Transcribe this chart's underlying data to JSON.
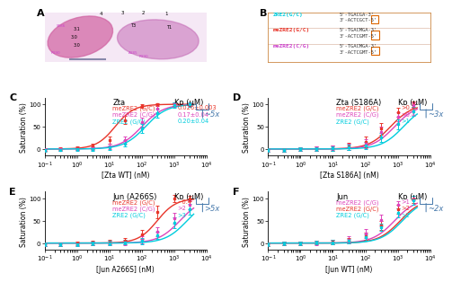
{
  "panel_C": {
    "title": "Zta",
    "xlabel": "[Zta WT] (nM)",
    "ylabel": "Saturation (%)",
    "xlim_log": [
      -1,
      4
    ],
    "ylim": [
      -15,
      115
    ],
    "series": [
      {
        "label": "meZRE2 (G/C)",
        "color": "#e8352a",
        "kd": "0.026±0.003",
        "hill": 1.5,
        "ec50": 15,
        "xdata": [
          0.1,
          0.3,
          1,
          3,
          10,
          30,
          100,
          300,
          1000,
          3000
        ],
        "ydata": [
          -2,
          0,
          2,
          5,
          20,
          65,
          97,
          100,
          100,
          100
        ],
        "yerr": [
          3,
          3,
          4,
          6,
          8,
          10,
          4,
          3,
          3,
          3
        ]
      },
      {
        "label": "meZRE2 (C/G)",
        "color": "#dd44bb",
        "kd": "0.17±0.04",
        "hill": 1.3,
        "ec50": 100,
        "xdata": [
          0.1,
          0.3,
          1,
          3,
          10,
          30,
          100,
          300,
          1000,
          3000
        ],
        "ydata": [
          -2,
          -1,
          0,
          2,
          5,
          20,
          60,
          90,
          100,
          100
        ],
        "yerr": [
          3,
          3,
          3,
          4,
          6,
          8,
          10,
          8,
          5,
          4
        ]
      },
      {
        "label": "ZRE2 (G/C)",
        "color": "#00ccdd",
        "kd": "0.20±0.04",
        "hill": 1.3,
        "ec50": 130,
        "xdata": [
          0.1,
          0.3,
          1,
          3,
          10,
          30,
          100,
          300,
          1000,
          3000
        ],
        "ydata": [
          -3,
          -2,
          -1,
          0,
          3,
          12,
          45,
          80,
          98,
          100
        ],
        "yerr": [
          3,
          3,
          3,
          4,
          5,
          7,
          10,
          10,
          6,
          5
        ]
      }
    ],
    "annotation": "~5x",
    "kd_label": "Kᴅ (μM)"
  },
  "panel_D": {
    "title": "Zta (S186A)",
    "xlabel": "[Zta S186A] (nM)",
    "ylabel": "Saturation (%)",
    "xlim_log": [
      -1,
      4
    ],
    "ylim": [
      -15,
      115
    ],
    "series": [
      {
        "label": "meZRE2 (G/C)",
        "color": "#e8352a",
        "kd": ">0.4",
        "hill": 1.3,
        "ec50": 600,
        "xdata": [
          0.1,
          0.3,
          1,
          3,
          10,
          30,
          100,
          300,
          1000,
          3000
        ],
        "ydata": [
          -3,
          -2,
          -1,
          0,
          2,
          5,
          15,
          45,
          82,
          100
        ],
        "yerr": [
          4,
          4,
          4,
          5,
          6,
          8,
          12,
          14,
          10,
          6
        ]
      },
      {
        "label": "meZRE2 (C/G)",
        "color": "#dd44bb",
        "kd": ">0.4",
        "hill": 1.3,
        "ec50": 800,
        "xdata": [
          0.1,
          0.3,
          1,
          3,
          10,
          30,
          100,
          300,
          1000,
          3000
        ],
        "ydata": [
          -3,
          -2,
          -1,
          0,
          2,
          4,
          12,
          38,
          72,
          98
        ],
        "yerr": [
          4,
          4,
          4,
          5,
          5,
          7,
          10,
          12,
          10,
          6
        ]
      },
      {
        "label": "ZRE2 (G/C)",
        "color": "#00ccdd",
        "kd": ">1",
        "hill": 1.3,
        "ec50": 1500,
        "xdata": [
          0.1,
          0.3,
          1,
          3,
          10,
          30,
          100,
          300,
          1000,
          3000
        ],
        "ydata": [
          -3,
          -2,
          -1,
          0,
          1,
          3,
          8,
          25,
          55,
          85
        ],
        "yerr": [
          4,
          4,
          4,
          4,
          5,
          6,
          8,
          10,
          12,
          10
        ]
      }
    ],
    "annotation": "~3x",
    "kd_label": "Kᴅ (μM)"
  },
  "panel_E": {
    "title": "Jun (A266S)",
    "xlabel": "[Jun A266S] (nM)",
    "ylabel": "Saturation (%)",
    "xlim_log": [
      -1,
      4
    ],
    "ylim": [
      -15,
      115
    ],
    "series": [
      {
        "label": "meZRE2 (G/C)",
        "color": "#e8352a",
        "kd": "~0.4",
        "hill": 1.5,
        "ec50": 300,
        "xdata": [
          0.1,
          0.3,
          1,
          3,
          10,
          30,
          100,
          300,
          1000,
          3000
        ],
        "ydata": [
          -3,
          -2,
          -1,
          0,
          2,
          5,
          20,
          70,
          100,
          100
        ],
        "yerr": [
          4,
          4,
          4,
          5,
          5,
          7,
          10,
          14,
          8,
          6
        ]
      },
      {
        "label": "meZRE2 (C/G)",
        "color": "#dd44bb",
        "kd": ">2",
        "hill": 1.3,
        "ec50": 1500,
        "xdata": [
          0.1,
          0.3,
          1,
          3,
          10,
          30,
          100,
          300,
          1000,
          3000
        ],
        "ydata": [
          -3,
          -2,
          -2,
          -1,
          0,
          2,
          8,
          25,
          55,
          85
        ],
        "yerr": [
          4,
          4,
          4,
          4,
          5,
          6,
          8,
          10,
          12,
          10
        ]
      },
      {
        "label": "ZRE2 (G/C)",
        "color": "#00ccdd",
        "kd": ">3",
        "hill": 1.3,
        "ec50": 2500,
        "xdata": [
          0.1,
          0.3,
          1,
          3,
          10,
          30,
          100,
          300,
          1000,
          3000
        ],
        "ydata": [
          -3,
          -2,
          -2,
          -1,
          0,
          2,
          5,
          18,
          45,
          75
        ],
        "yerr": [
          4,
          4,
          4,
          4,
          5,
          5,
          7,
          8,
          12,
          12
        ]
      }
    ],
    "annotation": ">5x",
    "kd_label": "Kᴅ (μM)"
  },
  "panel_F": {
    "title": "Jun",
    "xlabel": "[Jun WT] (nM)",
    "ylabel": "Saturation (%)",
    "xlim_log": [
      -1,
      4
    ],
    "ylim": [
      -15,
      115
    ],
    "series": [
      {
        "label": "meZRE2 (C/G)",
        "color": "#dd44bb",
        "kd": ">1",
        "hill": 1.3,
        "ec50": 800,
        "xdata": [
          0.1,
          0.3,
          1,
          3,
          10,
          30,
          100,
          300,
          1000,
          3000
        ],
        "ydata": [
          -2,
          -1,
          0,
          1,
          3,
          8,
          22,
          52,
          85,
          100
        ],
        "yerr": [
          4,
          4,
          4,
          5,
          5,
          7,
          10,
          12,
          8,
          5
        ]
      },
      {
        "label": "meZRE2 (G/C)",
        "color": "#e8352a",
        "kd": ">2",
        "hill": 1.3,
        "ec50": 1200,
        "xdata": [
          0.1,
          0.3,
          1,
          3,
          10,
          30,
          100,
          300,
          1000,
          3000
        ],
        "ydata": [
          -2,
          -1,
          0,
          1,
          3,
          6,
          15,
          40,
          75,
          98
        ],
        "yerr": [
          4,
          4,
          4,
          4,
          5,
          6,
          8,
          10,
          10,
          8
        ]
      },
      {
        "label": "ZRE2 (G/C)",
        "color": "#00ccdd",
        "kd": ">2",
        "hill": 1.3,
        "ec50": 1400,
        "xdata": [
          0.1,
          0.3,
          1,
          3,
          10,
          30,
          100,
          300,
          1000,
          3000
        ],
        "ydata": [
          -2,
          -1,
          0,
          1,
          2,
          5,
          13,
          35,
          68,
          95
        ],
        "yerr": [
          4,
          4,
          4,
          4,
          5,
          5,
          7,
          8,
          10,
          10
        ]
      }
    ],
    "annotation": "~2x",
    "kd_label": "Kᴅ (μM)"
  },
  "bg_color": "#ffffff",
  "label_fontsize": 5.5,
  "tick_fontsize": 5,
  "title_fontsize": 6,
  "legend_fontsize": 4.8,
  "annot_fontsize": 6
}
